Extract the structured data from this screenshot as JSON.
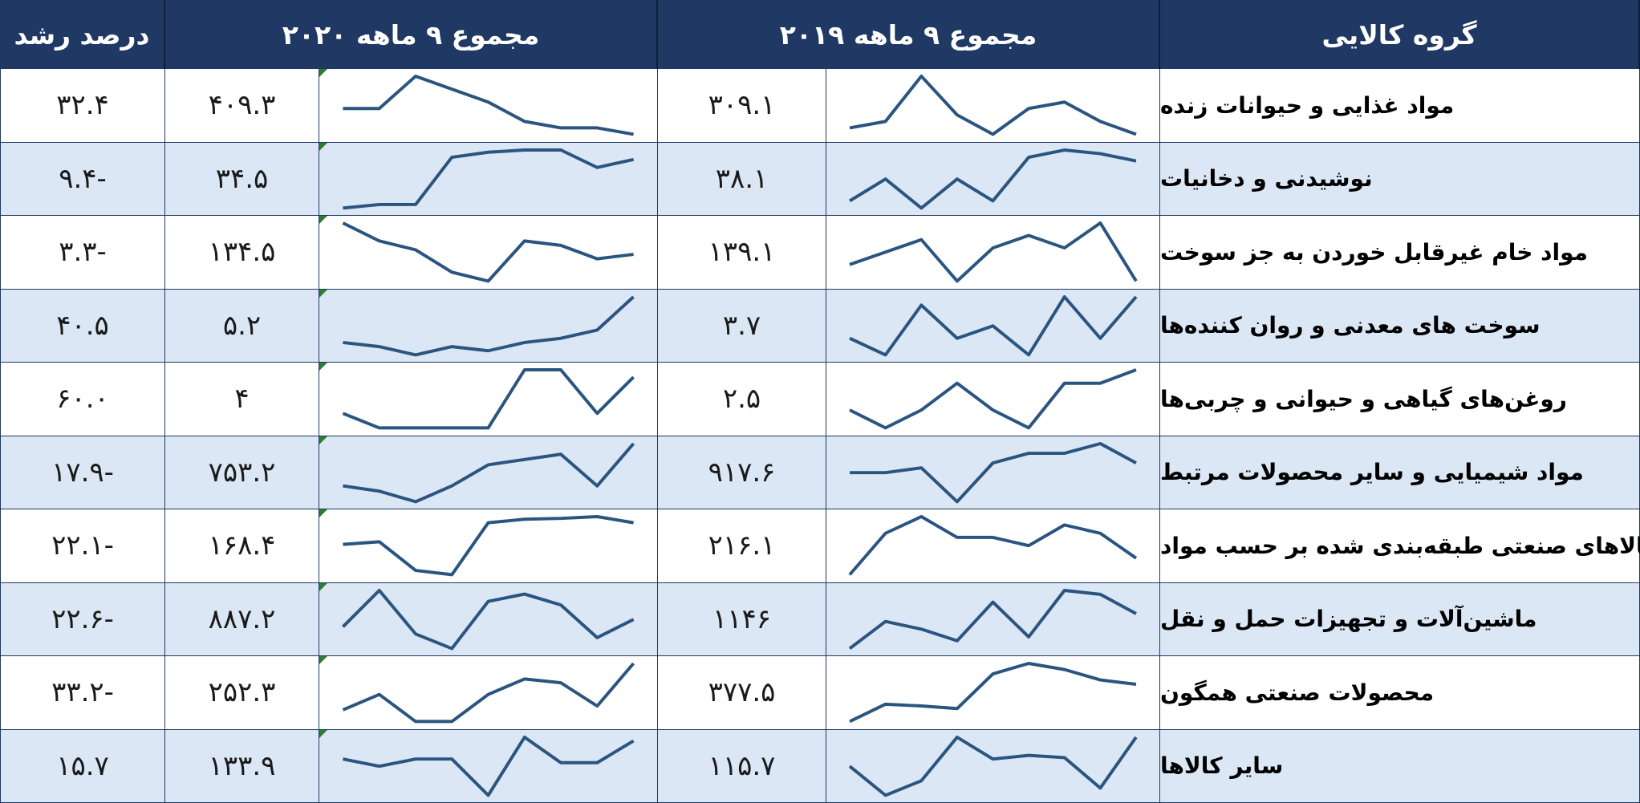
{
  "headers": {
    "group": "گروه کالایی",
    "y2019": "مجموع ۹ ماهه ۲۰۱۹",
    "y2020": "مجموع ۹ ماهه ۲۰۲۰",
    "growth": "درصد رشد"
  },
  "colors": {
    "header_bg": "#1f3864",
    "row_alt": "#dbe7f4",
    "sparkline": "#2a5580",
    "marker": "#2e7d32"
  },
  "chart_data": {
    "type": "table",
    "columns": [
      "گروه کالایی",
      "مجموع ۹ ماهه ۲۰۱۹",
      "مجموع ۹ ماهه ۲۰۲۰",
      "درصد رشد"
    ],
    "rows": [
      {
        "group": "مواد غذایی و حیوانات زنده",
        "v2019": "۳۰۹.۱",
        "v2020": "۴۰۹.۳",
        "growth": "۳۲.۴",
        "spark2019": [
          2,
          3,
          10,
          4,
          1,
          5,
          6,
          3,
          1
        ],
        "spark2020": [
          5,
          5,
          10,
          8,
          6,
          3,
          2,
          2,
          1
        ]
      },
      {
        "group": "نوشیدنی و دخانیات",
        "v2019": "۳۸.۱",
        "v2020": "۳۴.۵",
        "growth": "-۹.۴",
        "spark2019": [
          2,
          5,
          1,
          5,
          2,
          8,
          9,
          8.5,
          7.5
        ],
        "spark2020": [
          1,
          1.5,
          1.5,
          8,
          8.7,
          9,
          9,
          6.6,
          7.7
        ]
      },
      {
        "group": "مواد خام غیرقابل خوردن به جز سوخت",
        "v2019": "۱۳۹.۱",
        "v2020": "۱۳۴.۵",
        "growth": "-۳.۳",
        "spark2019": [
          3,
          4.5,
          6,
          1,
          5,
          6.5,
          5,
          8,
          1
        ],
        "spark2020": [
          9,
          7,
          6,
          3.5,
          2.5,
          7,
          6.5,
          5,
          5.5
        ]
      },
      {
        "group": "سوخت های معدنی و روان کننده‌ها",
        "v2019": "۳.۷",
        "v2020": "۵.۲",
        "growth": "۴۰.۵",
        "spark2019": [
          3,
          1,
          7,
          3,
          4.5,
          1,
          8,
          3,
          8
        ],
        "spark2020": [
          2.5,
          2,
          1,
          2,
          1.5,
          2.5,
          3,
          4,
          8
        ]
      },
      {
        "group": "روغن‌های گیاهی و حیوانی و چربی‌ها",
        "v2019": "۲.۵",
        "v2020": "۴",
        "growth": "۶۰.۰",
        "spark2019": [
          3,
          1,
          3,
          6,
          3,
          1,
          6,
          6,
          7.5
        ],
        "spark2020": [
          4,
          3,
          3,
          3,
          3,
          7,
          7,
          4,
          6.5
        ]
      },
      {
        "group": "مواد شیمیایی و سایر محصولات مرتبط",
        "v2019": "۹۱۷.۶",
        "v2020": "۷۵۳.۲",
        "growth": "-۱۷.۹",
        "spark2019": [
          6,
          6,
          6.5,
          3,
          7,
          8,
          8,
          9,
          7
        ],
        "spark2020": [
          4,
          3.5,
          2.5,
          4,
          6,
          6.5,
          7,
          4,
          8
        ]
      },
      {
        "group": "کالاهای صنعتی طبقه‌بندی شده بر حسب مواد",
        "v2019": "۲۱۶.۱",
        "v2020": "۱۶۸.۴",
        "growth": "-۲۲.۱",
        "spark2019": [
          1,
          6,
          8,
          5.5,
          5.5,
          4.5,
          7,
          6,
          3
        ],
        "spark2020": [
          5,
          5.3,
          2,
          1.5,
          7.5,
          7.9,
          8,
          8.2,
          7.5
        ]
      },
      {
        "group": "ماشین‌آلات و تجهیزات حمل و نقل",
        "v2019": "۱۱۴۶",
        "v2020": "۸۸۷.۲",
        "growth": "-۲۲.۶",
        "spark2019": [
          1,
          4.5,
          3.5,
          2,
          7,
          2.5,
          8.5,
          8,
          5.5
        ],
        "spark2020": [
          4,
          9,
          3,
          1,
          7.5,
          8.5,
          7,
          2.5,
          5
        ]
      },
      {
        "group": "محصولات صنعتی همگون",
        "v2019": "۳۷۷.۵",
        "v2020": "۲۵۲.۳",
        "growth": "-۳۳.۲",
        "spark2019": [
          1,
          3,
          2.8,
          2.5,
          6.5,
          7.7,
          7,
          5.8,
          5.3
        ],
        "spark2020": [
          2.5,
          4.5,
          1,
          1,
          4.5,
          6.5,
          6,
          3,
          8.5
        ]
      },
      {
        "group": "سایر کالاها",
        "v2019": "۱۱۵.۷",
        "v2020": "۱۳۳.۹",
        "growth": "۱۵.۷",
        "spark2019": [
          5,
          1,
          3,
          9,
          6,
          6.5,
          6.2,
          2,
          9
        ],
        "spark2020": [
          6,
          5,
          6,
          6,
          1,
          9,
          5.5,
          5.5,
          8.5
        ]
      }
    ]
  }
}
